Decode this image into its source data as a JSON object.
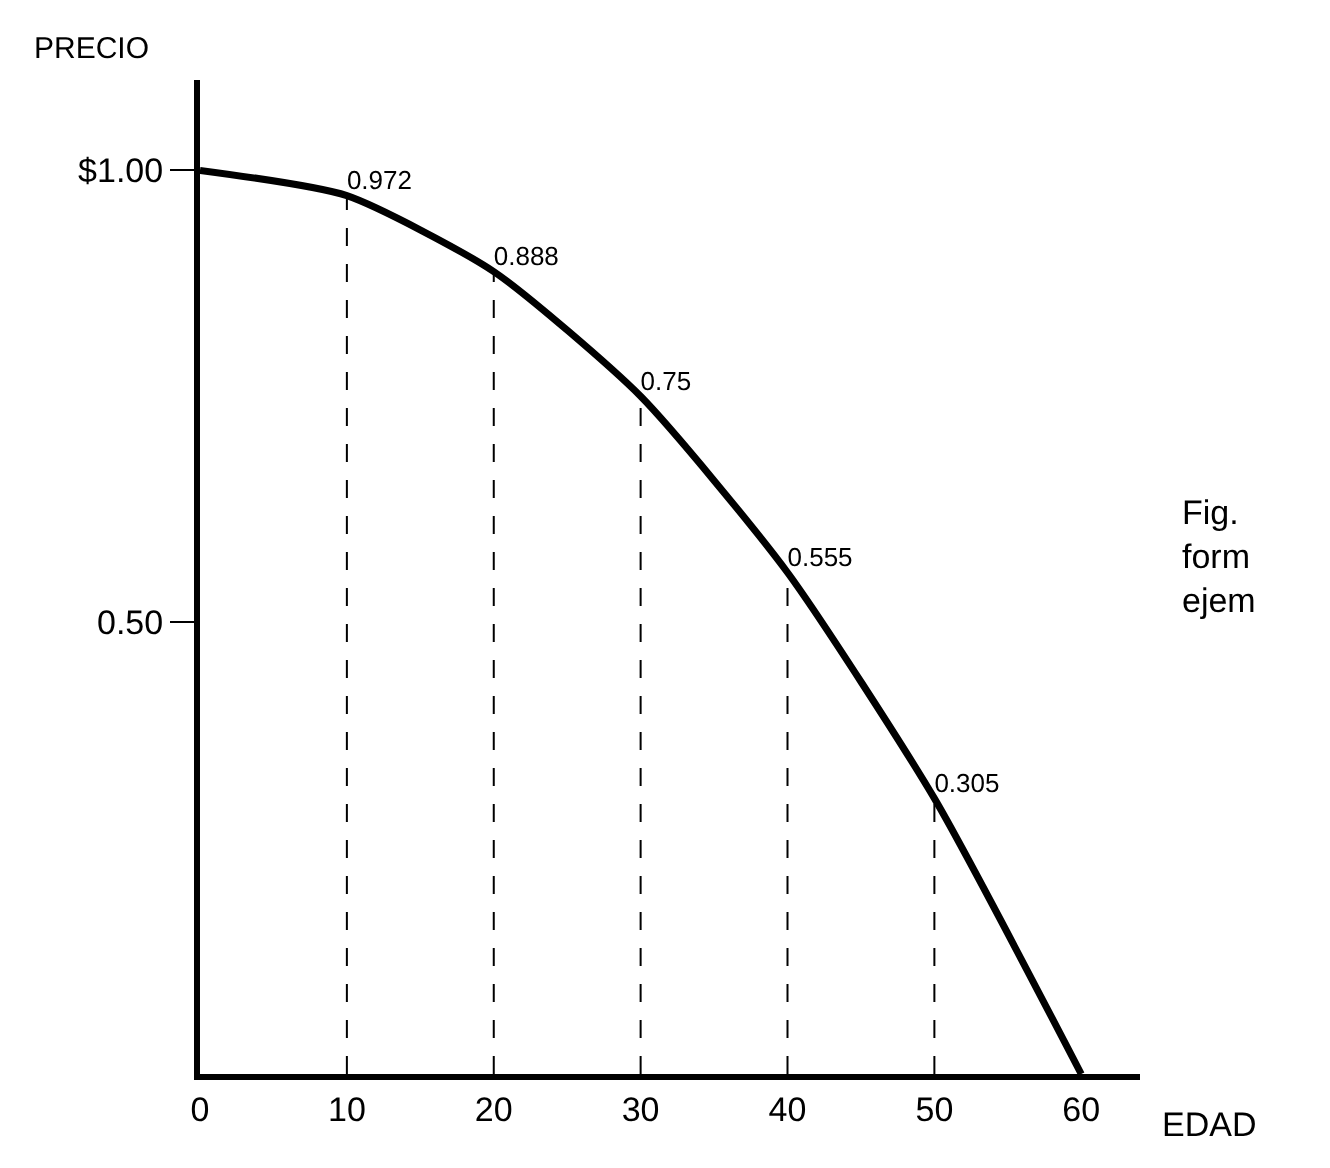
{
  "chart_data": {
    "type": "line",
    "xlabel": "EDAD",
    "ylabel": "PRECIO",
    "x": [
      0,
      10,
      20,
      30,
      40,
      50,
      60
    ],
    "values": [
      1,
      0.972,
      0.888,
      0.75,
      0.555,
      0.305,
      0
    ],
    "value_labels": [
      null,
      "0.972",
      "0.888",
      "0.75",
      "0.555",
      "0.305",
      null
    ],
    "color": "#000000",
    "marker": "none",
    "line_style": "solid",
    "grid": false,
    "legend": false,
    "xlim": [
      0,
      64
    ],
    "xticks": [
      0,
      10,
      20,
      30,
      40,
      50,
      60
    ],
    "ylim": [
      0,
      1.1
    ],
    "yticks": [
      {
        "value": 0.5,
        "label": "0.50"
      },
      {
        "value": 1,
        "label": "$1.00"
      }
    ],
    "ref_lines": [
      {
        "axis": "x",
        "value": 10,
        "line_style": "dashed",
        "label": null
      },
      {
        "axis": "x",
        "value": 20,
        "line_style": "dashed",
        "label": null
      },
      {
        "axis": "x",
        "value": 30,
        "line_style": "dashed",
        "label": null
      },
      {
        "axis": "x",
        "value": 40,
        "line_style": "dashed",
        "label": null
      },
      {
        "axis": "x",
        "value": 50,
        "line_style": "dashed",
        "label": null
      }
    ],
    "annotations": [
      "Fig.\nform\nejem"
    ]
  }
}
